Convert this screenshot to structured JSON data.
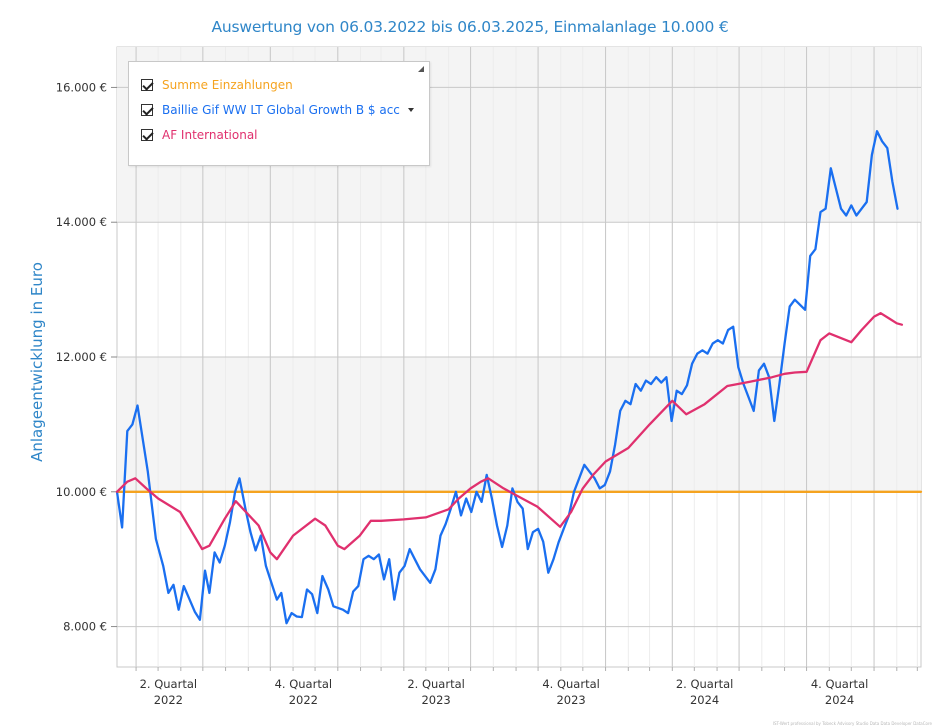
{
  "chart_data": {
    "type": "line",
    "title": "Auswertung von 06.03.2022 bis 06.03.2025, Einmalanlage 10.000 €",
    "ylabel": "Anlageentwicklung  in Euro",
    "xlabel": "",
    "ylim": [
      7400,
      16600
    ],
    "yticks": [
      {
        "value": 8000,
        "label": "8.000 €"
      },
      {
        "value": 10000,
        "label": "10.000 €"
      },
      {
        "value": 12000,
        "label": "12.000 €"
      },
      {
        "value": 14000,
        "label": "14.000 €"
      },
      {
        "value": 16000,
        "label": "16.000 €"
      }
    ],
    "xrange": [
      "2022-03-06",
      "2025-03-06"
    ],
    "xticks": [
      {
        "date": "2022-05-15",
        "label1": "2. Quartal",
        "label2": "2022"
      },
      {
        "date": "2022-11-15",
        "label1": "4. Quartal",
        "label2": "2022"
      },
      {
        "date": "2023-05-15",
        "label1": "2. Quartal",
        "label2": "2023"
      },
      {
        "date": "2023-11-15",
        "label1": "4. Quartal",
        "label2": "2023"
      },
      {
        "date": "2024-05-15",
        "label1": "2. Quartal",
        "label2": "2024"
      },
      {
        "date": "2024-11-15",
        "label1": "4. Quartal",
        "label2": "2024"
      }
    ],
    "quarter_boundaries": [
      "2022-04-01",
      "2022-07-01",
      "2022-10-01",
      "2023-01-01",
      "2023-04-01",
      "2023-07-01",
      "2023-10-01",
      "2024-01-01",
      "2024-04-01",
      "2024-07-01",
      "2024-10-01",
      "2025-01-01"
    ],
    "minor_gridlines": true,
    "legend_position": "top-left",
    "series": [
      {
        "name": "Summe Einzahlungen",
        "color": "#f5a31f",
        "points": [
          [
            "2022-03-06",
            10000
          ],
          [
            "2025-03-06",
            10000
          ]
        ]
      },
      {
        "name": "Baillie Gif WW LT Global Growth B $ acc",
        "color": "#1a6ff0",
        "points": [
          [
            "2022-03-06",
            10000
          ],
          [
            "2022-03-13",
            9470
          ],
          [
            "2022-03-20",
            10900
          ],
          [
            "2022-03-27",
            11000
          ],
          [
            "2022-04-03",
            11280
          ],
          [
            "2022-04-17",
            10300
          ],
          [
            "2022-04-28",
            9300
          ],
          [
            "2022-05-08",
            8900
          ],
          [
            "2022-05-15",
            8500
          ],
          [
            "2022-05-22",
            8620
          ],
          [
            "2022-05-29",
            8250
          ],
          [
            "2022-06-05",
            8600
          ],
          [
            "2022-06-13",
            8400
          ],
          [
            "2022-06-20",
            8220
          ],
          [
            "2022-06-27",
            8100
          ],
          [
            "2022-07-04",
            8830
          ],
          [
            "2022-07-10",
            8500
          ],
          [
            "2022-07-17",
            9100
          ],
          [
            "2022-07-24",
            8950
          ],
          [
            "2022-07-31",
            9200
          ],
          [
            "2022-08-07",
            9550
          ],
          [
            "2022-08-14",
            10000
          ],
          [
            "2022-08-20",
            10200
          ],
          [
            "2022-08-28",
            9750
          ],
          [
            "2022-09-04",
            9400
          ],
          [
            "2022-09-11",
            9130
          ],
          [
            "2022-09-18",
            9350
          ],
          [
            "2022-09-25",
            8900
          ],
          [
            "2022-10-04",
            8600
          ],
          [
            "2022-10-10",
            8400
          ],
          [
            "2022-10-16",
            8500
          ],
          [
            "2022-10-23",
            8050
          ],
          [
            "2022-10-30",
            8200
          ],
          [
            "2022-11-06",
            8150
          ],
          [
            "2022-11-13",
            8140
          ],
          [
            "2022-11-20",
            8550
          ],
          [
            "2022-11-27",
            8480
          ],
          [
            "2022-12-04",
            8200
          ],
          [
            "2022-12-11",
            8750
          ],
          [
            "2022-12-19",
            8550
          ],
          [
            "2022-12-26",
            8300
          ],
          [
            "2023-01-08",
            8250
          ],
          [
            "2023-01-15",
            8200
          ],
          [
            "2023-01-22",
            8520
          ],
          [
            "2023-01-29",
            8600
          ],
          [
            "2023-02-05",
            9000
          ],
          [
            "2023-02-12",
            9050
          ],
          [
            "2023-02-19",
            9000
          ],
          [
            "2023-02-26",
            9070
          ],
          [
            "2023-03-05",
            8700
          ],
          [
            "2023-03-12",
            9000
          ],
          [
            "2023-03-19",
            8400
          ],
          [
            "2023-03-26",
            8800
          ],
          [
            "2023-04-02",
            8900
          ],
          [
            "2023-04-09",
            9150
          ],
          [
            "2023-04-16",
            9000
          ],
          [
            "2023-04-23",
            8850
          ],
          [
            "2023-05-07",
            8650
          ],
          [
            "2023-05-14",
            8850
          ],
          [
            "2023-05-21",
            9350
          ],
          [
            "2023-05-28",
            9520
          ],
          [
            "2023-06-04",
            9750
          ],
          [
            "2023-06-11",
            10000
          ],
          [
            "2023-06-18",
            9650
          ],
          [
            "2023-06-25",
            9900
          ],
          [
            "2023-07-02",
            9700
          ],
          [
            "2023-07-09",
            10000
          ],
          [
            "2023-07-16",
            9850
          ],
          [
            "2023-07-23",
            10250
          ],
          [
            "2023-07-30",
            9900
          ],
          [
            "2023-08-06",
            9500
          ],
          [
            "2023-08-13",
            9180
          ],
          [
            "2023-08-20",
            9500
          ],
          [
            "2023-08-27",
            10050
          ],
          [
            "2023-09-03",
            9850
          ],
          [
            "2023-09-10",
            9750
          ],
          [
            "2023-09-17",
            9150
          ],
          [
            "2023-09-24",
            9400
          ],
          [
            "2023-10-01",
            9450
          ],
          [
            "2023-10-08",
            9260
          ],
          [
            "2023-10-15",
            8800
          ],
          [
            "2023-10-22",
            9000
          ],
          [
            "2023-10-29",
            9250
          ],
          [
            "2023-11-05",
            9450
          ],
          [
            "2023-11-12",
            9650
          ],
          [
            "2023-11-19",
            10000
          ],
          [
            "2023-11-26",
            10200
          ],
          [
            "2023-12-03",
            10400
          ],
          [
            "2023-12-10",
            10300
          ],
          [
            "2023-12-17",
            10200
          ],
          [
            "2023-12-24",
            10050
          ],
          [
            "2023-12-31",
            10100
          ],
          [
            "2024-01-07",
            10300
          ],
          [
            "2024-01-14",
            10700
          ],
          [
            "2024-01-21",
            11200
          ],
          [
            "2024-01-28",
            11350
          ],
          [
            "2024-02-04",
            11300
          ],
          [
            "2024-02-11",
            11600
          ],
          [
            "2024-02-18",
            11500
          ],
          [
            "2024-02-25",
            11650
          ],
          [
            "2024-03-03",
            11600
          ],
          [
            "2024-03-10",
            11700
          ],
          [
            "2024-03-17",
            11620
          ],
          [
            "2024-03-24",
            11700
          ],
          [
            "2024-03-31",
            11050
          ],
          [
            "2024-04-07",
            11500
          ],
          [
            "2024-04-14",
            11450
          ],
          [
            "2024-04-21",
            11580
          ],
          [
            "2024-04-28",
            11900
          ],
          [
            "2024-05-05",
            12050
          ],
          [
            "2024-05-12",
            12100
          ],
          [
            "2024-05-19",
            12050
          ],
          [
            "2024-05-26",
            12200
          ],
          [
            "2024-06-02",
            12250
          ],
          [
            "2024-06-09",
            12200
          ],
          [
            "2024-06-16",
            12400
          ],
          [
            "2024-06-23",
            12450
          ],
          [
            "2024-06-30",
            11850
          ],
          [
            "2024-07-07",
            11600
          ],
          [
            "2024-07-14",
            11400
          ],
          [
            "2024-07-21",
            11200
          ],
          [
            "2024-07-28",
            11800
          ],
          [
            "2024-08-04",
            11900
          ],
          [
            "2024-08-11",
            11700
          ],
          [
            "2024-08-18",
            11050
          ],
          [
            "2024-08-25",
            11600
          ],
          [
            "2024-09-01",
            12200
          ],
          [
            "2024-09-08",
            12750
          ],
          [
            "2024-09-15",
            12850
          ],
          [
            "2024-09-29",
            12700
          ],
          [
            "2024-10-06",
            13500
          ],
          [
            "2024-10-13",
            13600
          ],
          [
            "2024-10-20",
            14150
          ],
          [
            "2024-10-27",
            14200
          ],
          [
            "2024-11-03",
            14800
          ],
          [
            "2024-11-10",
            14500
          ],
          [
            "2024-11-17",
            14200
          ],
          [
            "2024-11-24",
            14100
          ],
          [
            "2024-12-01",
            14250
          ],
          [
            "2024-12-08",
            14100
          ],
          [
            "2024-12-15",
            14200
          ],
          [
            "2024-12-22",
            14300
          ],
          [
            "2024-12-29",
            15000
          ],
          [
            "2025-01-05",
            15350
          ],
          [
            "2025-01-12",
            15200
          ],
          [
            "2025-01-19",
            15100
          ],
          [
            "2025-01-26",
            14600
          ],
          [
            "2025-02-02",
            14200
          ]
        ]
      },
      {
        "name": "AF International",
        "color": "#e0306e",
        "points": [
          [
            "2022-03-06",
            10000
          ],
          [
            "2022-03-20",
            10150
          ],
          [
            "2022-03-31",
            10200
          ],
          [
            "2022-04-15",
            10050
          ],
          [
            "2022-05-01",
            9900
          ],
          [
            "2022-05-31",
            9700
          ],
          [
            "2022-06-30",
            9150
          ],
          [
            "2022-07-10",
            9200
          ],
          [
            "2022-07-31",
            9600
          ],
          [
            "2022-08-15",
            9860
          ],
          [
            "2022-09-15",
            9500
          ],
          [
            "2022-10-01",
            9100
          ],
          [
            "2022-10-10",
            9000
          ],
          [
            "2022-11-01",
            9350
          ],
          [
            "2022-12-01",
            9600
          ],
          [
            "2022-12-15",
            9500
          ],
          [
            "2023-01-01",
            9200
          ],
          [
            "2023-01-10",
            9150
          ],
          [
            "2023-01-31",
            9350
          ],
          [
            "2023-02-15",
            9570
          ],
          [
            "2023-03-01",
            9570
          ],
          [
            "2023-04-01",
            9590
          ],
          [
            "2023-05-01",
            9620
          ],
          [
            "2023-06-01",
            9740
          ],
          [
            "2023-06-15",
            9900
          ],
          [
            "2023-07-01",
            10050
          ],
          [
            "2023-07-15",
            10150
          ],
          [
            "2023-07-25",
            10200
          ],
          [
            "2023-08-15",
            10050
          ],
          [
            "2023-09-01",
            9950
          ],
          [
            "2023-09-30",
            9780
          ],
          [
            "2023-10-31",
            9480
          ],
          [
            "2023-11-15",
            9700
          ],
          [
            "2023-12-01",
            10050
          ],
          [
            "2023-12-15",
            10250
          ],
          [
            "2024-01-01",
            10450
          ],
          [
            "2024-02-01",
            10650
          ],
          [
            "2024-03-01",
            11000
          ],
          [
            "2024-04-01",
            11350
          ],
          [
            "2024-04-20",
            11150
          ],
          [
            "2024-05-15",
            11300
          ],
          [
            "2024-06-15",
            11570
          ],
          [
            "2024-07-15",
            11630
          ],
          [
            "2024-08-15",
            11700
          ],
          [
            "2024-09-01",
            11750
          ],
          [
            "2024-09-15",
            11770
          ],
          [
            "2024-10-01",
            11780
          ],
          [
            "2024-10-20",
            12250
          ],
          [
            "2024-11-01",
            12350
          ],
          [
            "2024-12-01",
            12220
          ],
          [
            "2024-12-15",
            12400
          ],
          [
            "2025-01-01",
            12600
          ],
          [
            "2025-01-10",
            12650
          ],
          [
            "2025-02-01",
            12500
          ],
          [
            "2025-02-08",
            12480
          ]
        ]
      }
    ]
  },
  "legend": {
    "items": [
      {
        "label": "Summe Einzahlungen",
        "color": "#f5a31f",
        "checked": true,
        "has_dropdown": false
      },
      {
        "label": "Baillie Gif WW LT Global Growth B $ acc",
        "color": "#1a6ff0",
        "checked": true,
        "has_dropdown": true
      },
      {
        "label": "AF International",
        "color": "#e0306e",
        "checked": true,
        "has_dropdown": false
      }
    ]
  },
  "footer_text": "IST-Wert professional by Tobeck Advisory Studio Data Data Developer DataCore"
}
